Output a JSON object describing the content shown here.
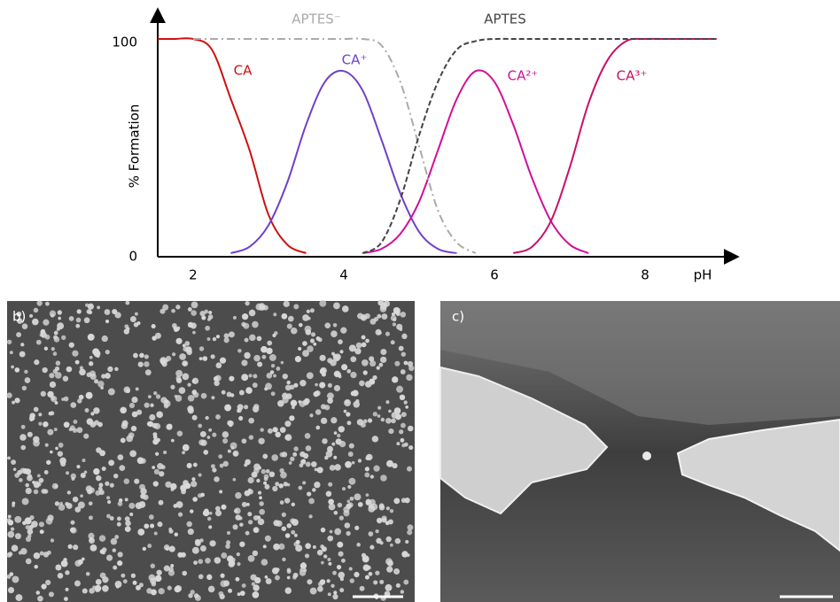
{
  "chart_data": {
    "type": "line",
    "y_label": "% Formation",
    "x_label": "pH",
    "x": [
      1.53,
      1.75,
      2,
      2.25,
      2.5,
      2.75,
      3,
      3.25,
      3.5,
      3.75,
      4,
      4.25,
      4.5,
      4.75,
      5,
      5.25,
      5.5,
      5.75,
      6,
      6.25,
      6.5,
      6.75,
      7,
      7.25,
      7.5,
      7.75,
      8,
      8.25,
      8.5,
      8.75,
      8.95
    ],
    "xlim": [
      1.53,
      9.2
    ],
    "xticks": [
      2,
      4,
      6,
      8
    ],
    "ylim": [
      0,
      100
    ],
    "yticks": [
      0,
      100
    ],
    "series": [
      {
        "name": "CA",
        "color": "#cc1111",
        "dash": "none",
        "values": [
          100,
          100,
          100,
          95,
          72,
          48,
          18,
          4,
          0,
          null,
          null,
          null,
          null,
          null,
          null,
          null,
          null,
          null,
          null,
          null,
          null,
          null,
          null,
          null,
          null,
          null,
          null,
          null,
          null,
          null,
          null
        ]
      },
      {
        "name": "CA⁺",
        "color": "#7040c8",
        "dash": "none",
        "values": [
          null,
          null,
          null,
          null,
          0,
          3,
          13,
          33,
          60,
          80,
          85,
          76,
          53,
          28,
          10,
          2,
          0,
          null,
          null,
          null,
          null,
          null,
          null,
          null,
          null,
          null,
          null,
          null,
          null,
          null,
          null
        ]
      },
      {
        "name": "CA²⁺",
        "color": "#d0109a",
        "dash": "none",
        "values": [
          null,
          null,
          null,
          null,
          null,
          null,
          null,
          null,
          null,
          null,
          null,
          0,
          2,
          9,
          24,
          48,
          72,
          85,
          80,
          60,
          35,
          15,
          4,
          0,
          null,
          null,
          null,
          null,
          null,
          null,
          null
        ]
      },
      {
        "name": "CA³⁺",
        "color": "#c8106a",
        "dash": "none",
        "values": [
          null,
          null,
          null,
          null,
          null,
          null,
          null,
          null,
          null,
          null,
          null,
          null,
          null,
          null,
          null,
          null,
          null,
          null,
          null,
          0,
          3,
          15,
          40,
          70,
          90,
          99,
          100,
          100,
          100,
          100,
          100
        ]
      },
      {
        "name": "APTES⁻",
        "color": "#aaaaaa",
        "dash": "9 4 2 4",
        "values": [
          null,
          null,
          100,
          100,
          100,
          100,
          100,
          100,
          100,
          100,
          100,
          100,
          97,
          80,
          50,
          20,
          5,
          0,
          null,
          null,
          null,
          null,
          null,
          null,
          null,
          null,
          null,
          null,
          null,
          null,
          null
        ]
      },
      {
        "name": "APTES",
        "color": "#444444",
        "dash": "6 3",
        "values": [
          null,
          null,
          null,
          null,
          null,
          null,
          null,
          null,
          null,
          null,
          null,
          0,
          5,
          25,
          55,
          80,
          95,
          99,
          100,
          100,
          100,
          100,
          100,
          100,
          100,
          100,
          100,
          100,
          100,
          100,
          100
        ]
      }
    ]
  },
  "panels": [
    {
      "label": "b)"
    },
    {
      "label": "c)"
    }
  ]
}
